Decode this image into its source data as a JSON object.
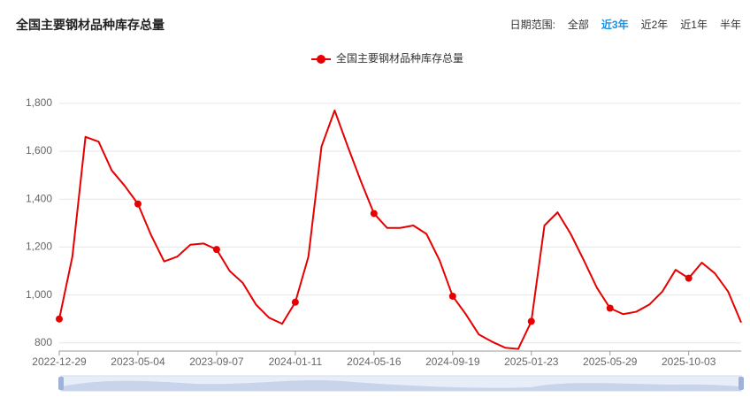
{
  "header": {
    "title": "全国主要钢材品种库存总量",
    "range_label": "日期范围:",
    "range_options": [
      "全部",
      "近3年",
      "近2年",
      "近1年",
      "半年"
    ],
    "active_option": 1
  },
  "chart_data": {
    "type": "line",
    "categories": [
      "2022-12-29",
      null,
      null,
      null,
      null,
      null,
      "2023-05-04",
      null,
      null,
      null,
      null,
      null,
      "2023-09-07",
      null,
      null,
      null,
      null,
      null,
      "2024-01-11",
      null,
      null,
      null,
      null,
      null,
      "2024-05-16",
      null,
      null,
      null,
      null,
      null,
      "2024-09-19",
      null,
      null,
      null,
      null,
      null,
      "2025-01-23",
      null,
      null,
      null,
      null,
      null,
      "2025-05-29",
      null,
      null,
      null,
      null,
      null,
      "2025-10-03",
      null,
      null,
      null,
      null
    ],
    "series": [
      {
        "name": "全国主要钢材品种库存总量",
        "color": "#e60000",
        "values": [
          900,
          1160,
          1660,
          1640,
          1520,
          1455,
          1380,
          1250,
          1140,
          1160,
          1210,
          1215,
          1190,
          1100,
          1050,
          960,
          905,
          880,
          970,
          1160,
          1620,
          1770,
          1620,
          1475,
          1340,
          1280,
          1280,
          1290,
          1255,
          1145,
          995,
          920,
          835,
          805,
          780,
          775,
          890,
          1290,
          1345,
          1255,
          1145,
          1030,
          945,
          920,
          930,
          960,
          1015,
          1105,
          1070,
          1135,
          1090,
          1015,
          885
        ]
      }
    ],
    "ylim": [
      766,
      1899
    ],
    "yticks": [
      800,
      {
        "value": 1000,
        "label": "1,000"
      },
      {
        "value": 1200,
        "label": "1,200"
      },
      {
        "value": 1400,
        "label": "1,400"
      },
      {
        "value": 1600,
        "label": "1,600"
      },
      {
        "value": 1800,
        "label": "1,800"
      }
    ],
    "grid": true,
    "legend": "top"
  }
}
